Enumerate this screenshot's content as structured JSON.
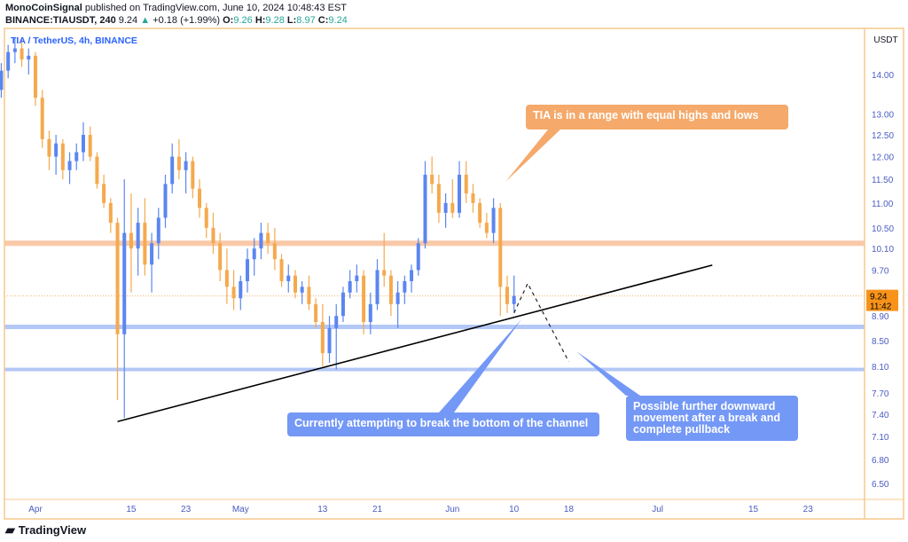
{
  "header": {
    "author": "MonoCoinSignal",
    "published": "published on TradingView.com, June 10, 2024 10:48:43 EST",
    "symbol": "BINANCE:TIAUSDT, 240",
    "last": "9.24",
    "change": "+0.18 (+1.99%)",
    "o_label": "O:",
    "o": "9.26",
    "h_label": "H:",
    "h": "9.28",
    "l_label": "L:",
    "l": "8.97",
    "c_label": "C:",
    "c": "9.24",
    "up_icon": "triangle-up-icon"
  },
  "chart_title": "TIA / TetherUS, 4h, BINANCE",
  "currency": "USDT",
  "logo": "TradingView",
  "colors": {
    "up": "#5b86f0",
    "down": "#f5a94e",
    "frame": "#f7c98a",
    "resistance": "#f9c9a8",
    "support": "#b4c8f7",
    "callout_orange": "#f5a96a",
    "callout_blue": "#7498f6",
    "price_tag": "#f7931a"
  },
  "chart_data": {
    "type": "candlestick",
    "scale": "log",
    "ylim": [
      6.3,
      15.2
    ],
    "yticks": [
      "14.00",
      "13.00",
      "12.50",
      "12.00",
      "11.50",
      "11.00",
      "10.50",
      "10.10",
      "9.70",
      "8.90",
      "8.50",
      "8.10",
      "7.70",
      "7.40",
      "7.10",
      "6.80",
      "6.50"
    ],
    "xticks": [
      {
        "label": "Apr",
        "date": "2024-04-01"
      },
      {
        "label": "15",
        "date": "2024-04-15"
      },
      {
        "label": "23",
        "date": "2024-04-23"
      },
      {
        "label": "May",
        "date": "2024-05-01"
      },
      {
        "label": "13",
        "date": "2024-05-13"
      },
      {
        "label": "21",
        "date": "2024-05-21"
      },
      {
        "label": "Jun",
        "date": "2024-06-01"
      },
      {
        "label": "10",
        "date": "2024-06-10"
      },
      {
        "label": "18",
        "date": "2024-06-18"
      },
      {
        "label": "Jul",
        "date": "2024-07-01"
      },
      {
        "label": "15",
        "date": "2024-07-15"
      },
      {
        "label": "23",
        "date": "2024-07-23"
      }
    ],
    "first_date": "2024-03-27",
    "ohlc": [
      [
        13.6,
        14.3,
        13.4,
        14.1
      ],
      [
        14.1,
        14.8,
        13.9,
        14.6
      ],
      [
        14.6,
        15.0,
        14.3,
        14.7
      ],
      [
        14.7,
        15.0,
        14.2,
        14.4
      ],
      [
        14.4,
        14.7,
        14.0,
        14.5
      ],
      [
        14.5,
        14.6,
        13.2,
        13.4
      ],
      [
        13.4,
        13.6,
        12.2,
        12.4
      ],
      [
        12.4,
        12.6,
        11.7,
        12.0
      ],
      [
        12.0,
        12.5,
        11.6,
        12.3
      ],
      [
        12.3,
        12.4,
        11.5,
        11.7
      ],
      [
        11.7,
        12.1,
        11.4,
        11.9
      ],
      [
        11.9,
        12.3,
        11.7,
        12.1
      ],
      [
        12.1,
        12.8,
        11.9,
        12.5
      ],
      [
        12.5,
        12.7,
        11.9,
        12.0
      ],
      [
        12.0,
        12.1,
        11.3,
        11.4
      ],
      [
        11.4,
        11.6,
        10.9,
        11.0
      ],
      [
        11.0,
        11.1,
        10.4,
        10.6
      ],
      [
        10.6,
        10.7,
        7.6,
        8.6
      ],
      [
        8.6,
        11.5,
        7.35,
        10.4
      ],
      [
        10.4,
        11.2,
        9.3,
        10.1
      ],
      [
        10.1,
        10.9,
        9.6,
        10.6
      ],
      [
        10.6,
        11.1,
        9.6,
        9.8
      ],
      [
        9.8,
        10.4,
        9.3,
        10.2
      ],
      [
        10.2,
        10.9,
        9.9,
        10.7
      ],
      [
        10.7,
        11.6,
        10.5,
        11.4
      ],
      [
        11.4,
        12.3,
        11.2,
        12.0
      ],
      [
        12.0,
        12.4,
        11.5,
        11.7
      ],
      [
        11.7,
        12.1,
        11.2,
        11.9
      ],
      [
        11.9,
        12.0,
        11.1,
        11.3
      ],
      [
        11.3,
        11.5,
        10.7,
        10.9
      ],
      [
        10.9,
        11.0,
        10.3,
        10.5
      ],
      [
        10.5,
        10.8,
        10.0,
        10.2
      ],
      [
        10.2,
        10.4,
        9.5,
        9.7
      ],
      [
        9.7,
        10.1,
        9.1,
        9.4
      ],
      [
        9.4,
        9.7,
        9.0,
        9.2
      ],
      [
        9.2,
        9.6,
        9.0,
        9.5
      ],
      [
        9.5,
        10.1,
        9.3,
        9.9
      ],
      [
        9.9,
        10.3,
        9.6,
        10.1
      ],
      [
        10.1,
        10.6,
        9.9,
        10.4
      ],
      [
        10.4,
        10.6,
        10.0,
        10.2
      ],
      [
        10.2,
        10.5,
        9.7,
        9.9
      ],
      [
        9.9,
        10.0,
        9.4,
        9.5
      ],
      [
        9.5,
        9.8,
        9.3,
        9.6
      ],
      [
        9.6,
        9.7,
        9.2,
        9.3
      ],
      [
        9.3,
        9.5,
        9.1,
        9.4
      ],
      [
        9.4,
        9.6,
        9.0,
        9.1
      ],
      [
        9.1,
        9.2,
        8.7,
        8.8
      ],
      [
        8.8,
        9.1,
        8.1,
        8.3
      ],
      [
        8.3,
        8.9,
        8.15,
        8.7
      ],
      [
        8.7,
        9.1,
        8.05,
        8.9
      ],
      [
        8.9,
        9.4,
        8.8,
        9.3
      ],
      [
        9.3,
        9.7,
        9.2,
        9.5
      ],
      [
        9.5,
        9.8,
        9.3,
        9.6
      ],
      [
        9.6,
        9.7,
        8.6,
        8.8
      ],
      [
        8.8,
        9.3,
        8.6,
        9.1
      ],
      [
        9.1,
        9.9,
        9.0,
        9.7
      ],
      [
        9.7,
        10.4,
        9.4,
        9.6
      ],
      [
        9.6,
        9.7,
        8.9,
        9.1
      ],
      [
        9.1,
        9.5,
        8.7,
        9.3
      ],
      [
        9.3,
        9.6,
        9.1,
        9.5
      ],
      [
        9.5,
        9.8,
        9.3,
        9.7
      ],
      [
        9.7,
        10.3,
        9.6,
        10.2
      ],
      [
        10.2,
        11.9,
        10.1,
        11.6
      ],
      [
        11.6,
        12.0,
        11.2,
        11.4
      ],
      [
        11.4,
        11.6,
        10.6,
        10.8
      ],
      [
        10.8,
        11.2,
        10.5,
        11.0
      ],
      [
        11.0,
        11.5,
        10.7,
        10.8
      ],
      [
        10.8,
        11.9,
        10.7,
        11.6
      ],
      [
        11.6,
        11.9,
        11.0,
        11.2
      ],
      [
        11.2,
        11.4,
        10.8,
        11.0
      ],
      [
        11.0,
        11.1,
        10.5,
        10.6
      ],
      [
        10.6,
        10.8,
        10.3,
        10.4
      ],
      [
        10.4,
        11.1,
        10.2,
        10.9
      ],
      [
        10.9,
        11.0,
        8.9,
        9.4
      ],
      [
        9.4,
        9.6,
        8.95,
        9.1
      ],
      [
        9.1,
        9.6,
        8.97,
        9.24
      ]
    ],
    "last_price": 9.24,
    "last_price_label": "9.24",
    "countdown": "11:42",
    "levels": {
      "resistance": 10.2,
      "support_1": 8.72,
      "support_2": 8.05
    },
    "trendline": [
      {
        "date": "2024-04-13",
        "price": 7.3
      },
      {
        "date": "2024-07-09",
        "price": 9.79
      }
    ],
    "projection": [
      {
        "date": "2024-06-10",
        "price": 8.95
      },
      {
        "date": "2024-06-12",
        "price": 9.46
      },
      {
        "date": "2024-06-18",
        "price": 8.17
      }
    ]
  },
  "annotations": [
    {
      "text": "TIA is in a range with equal highs and lows"
    },
    {
      "text": "Currently attempting to break the bottom of the channel"
    },
    {
      "text": "Possible further downward movement after a break and complete pullback"
    }
  ]
}
